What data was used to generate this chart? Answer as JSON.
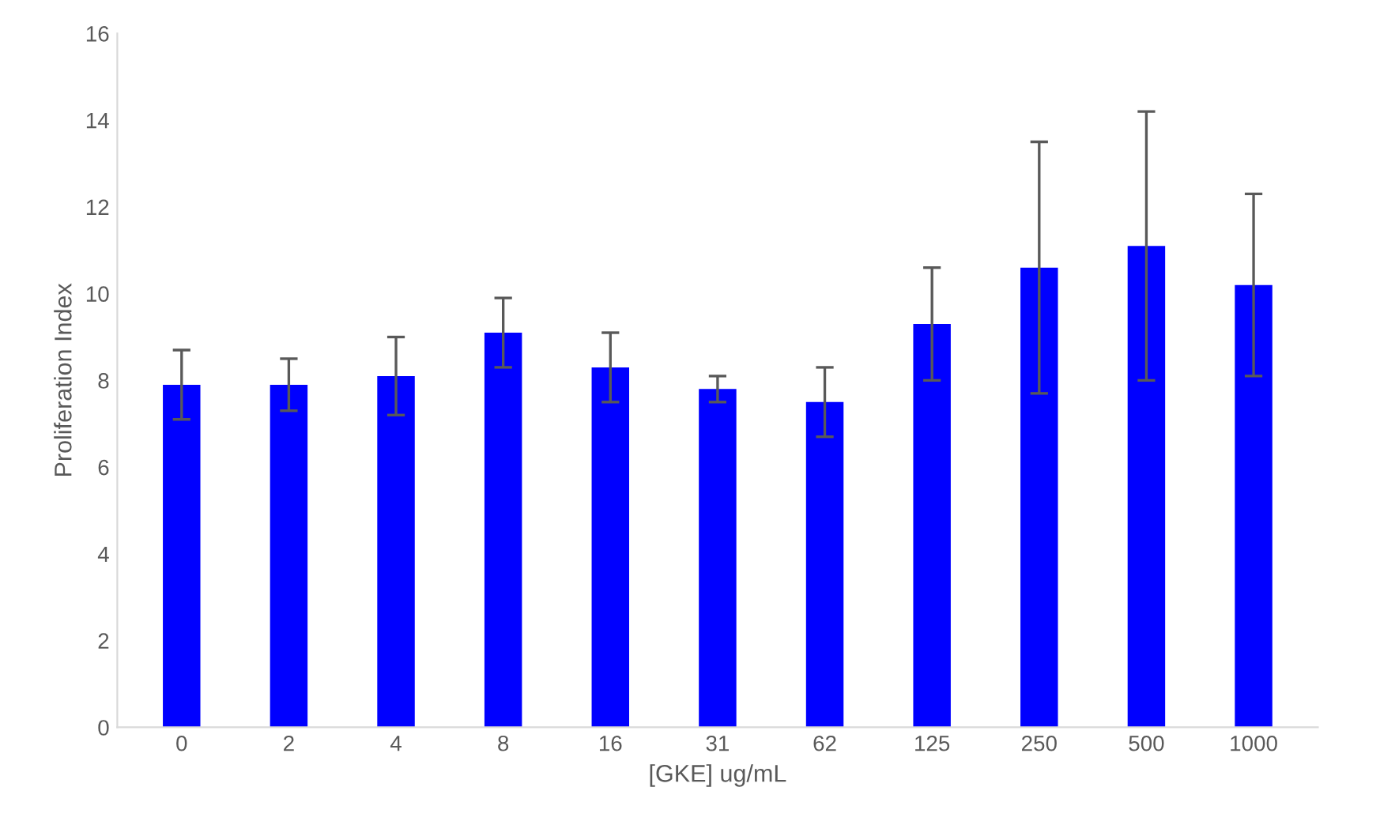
{
  "chart_data": {
    "type": "bar",
    "xlabel": "[GKE] ug/mL",
    "ylabel": "Proliferation Index",
    "categories": [
      "0",
      "2",
      "4",
      "8",
      "16",
      "31",
      "62",
      "125",
      "250",
      "500",
      "1000"
    ],
    "values": [
      7.9,
      7.9,
      8.1,
      9.1,
      8.3,
      7.8,
      7.5,
      9.3,
      10.6,
      11.1,
      10.2
    ],
    "errors": [
      0.8,
      0.6,
      0.9,
      0.8,
      0.8,
      0.3,
      0.8,
      1.3,
      2.9,
      3.1,
      2.1
    ],
    "color": "#0000ff",
    "ylim": [
      0,
      16
    ],
    "yticks": [
      0,
      2,
      4,
      6,
      8,
      10,
      12,
      14,
      16
    ],
    "grid": false
  }
}
